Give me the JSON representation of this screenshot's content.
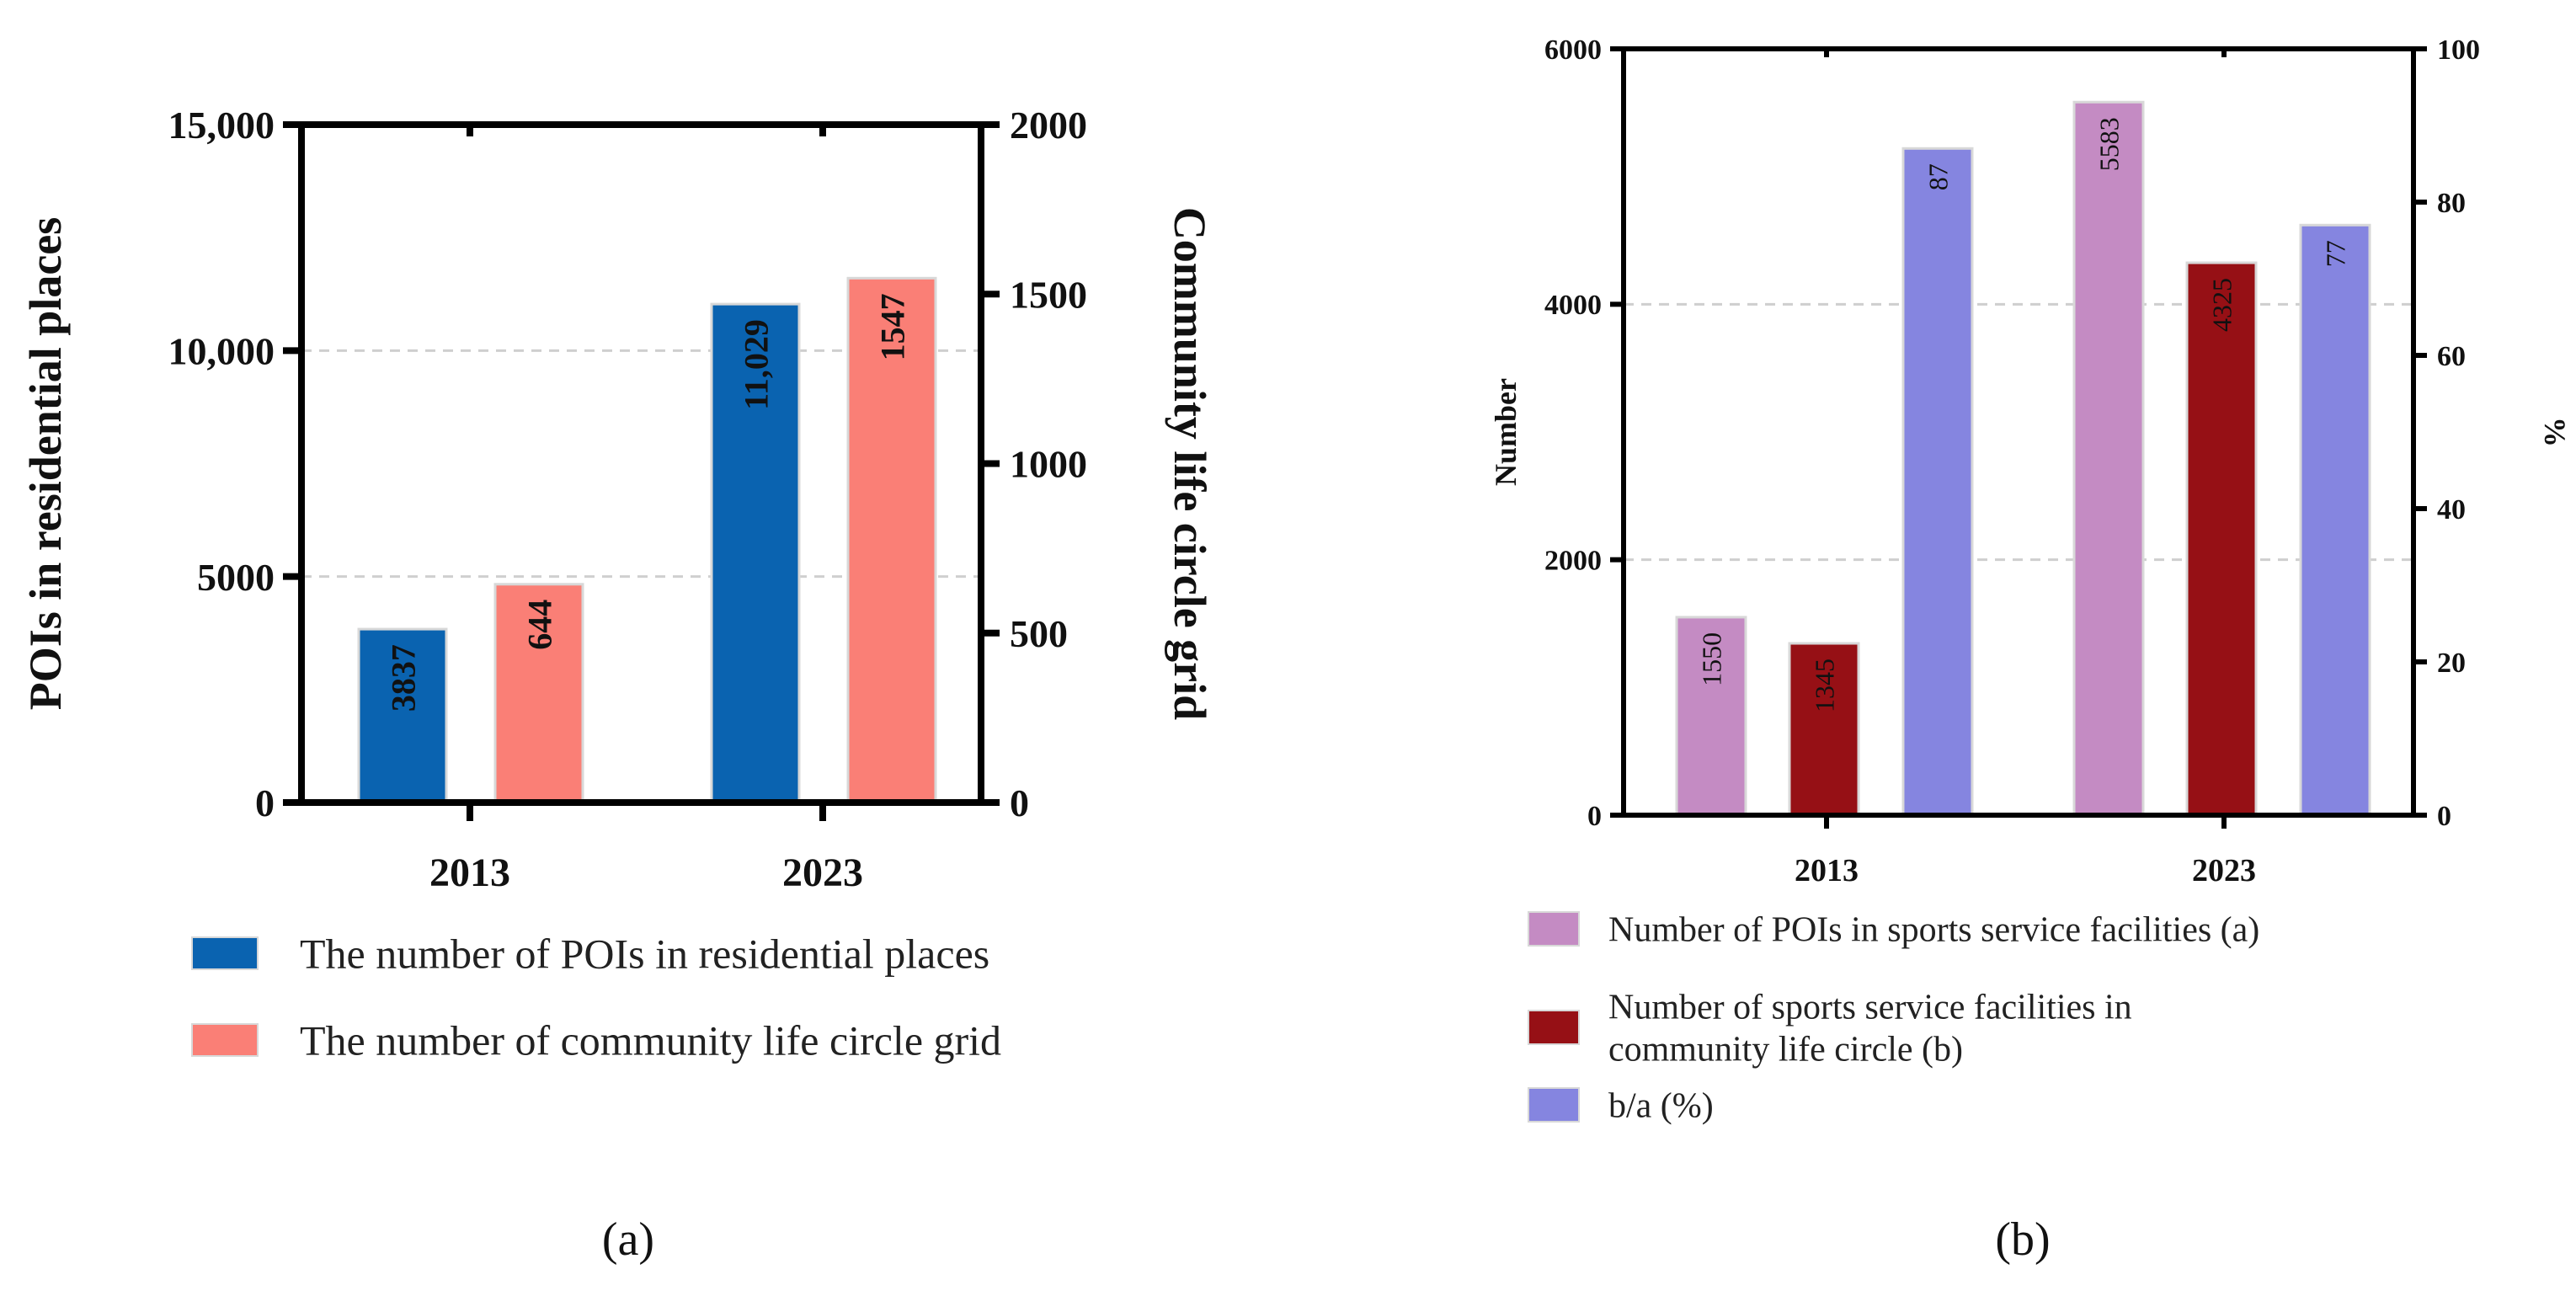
{
  "panel_labels": {
    "a": "(a)",
    "b": "(b)"
  },
  "chart_data": [
    {
      "id": "a",
      "type": "bar",
      "categories": [
        "2013",
        "2023"
      ],
      "series": [
        {
          "name": "The number of POIs in residential places",
          "axis": "left",
          "color": "#0A63B0",
          "values": [
            3837,
            11029
          ],
          "labels": [
            "3837",
            "11,029"
          ]
        },
        {
          "name": "The number of community life circle grid",
          "axis": "right",
          "color": "#FA7F76",
          "values": [
            644,
            1547
          ],
          "labels": [
            "644",
            "1547"
          ]
        }
      ],
      "ylabel": "POIs in residential places",
      "y2label": "Community life circle grid",
      "ylim": [
        0,
        15000
      ],
      "y2lim": [
        0,
        2000
      ],
      "yticks": [
        "0",
        "5000",
        "10,000",
        "15,000"
      ],
      "y2ticks": [
        "0",
        "500",
        "1000",
        "1500",
        "2000"
      ],
      "gridlines": [
        5000,
        10000
      ],
      "legend_position": "bottom"
    },
    {
      "id": "b",
      "type": "bar",
      "categories": [
        "2013",
        "2023"
      ],
      "series": [
        {
          "name": "Number of POIs in sports service facilities (a)",
          "axis": "left",
          "color": "#C48BC3",
          "values": [
            1550,
            5583
          ],
          "labels": [
            "1550",
            "5583"
          ]
        },
        {
          "name": "Number of sports service facilities in community life circle (b)",
          "legend_lines": [
            "Number of sports service facilities in",
            "community life circle (b)"
          ],
          "axis": "left",
          "color": "#961015",
          "values": [
            1345,
            4325
          ],
          "labels": [
            "1345",
            "4325"
          ]
        },
        {
          "name": "b/a (%)",
          "axis": "right",
          "color": "#8585E0",
          "values": [
            87,
            77
          ],
          "labels": [
            "87",
            "77"
          ]
        }
      ],
      "ylabel": "Number",
      "y2label": "%",
      "ylim": [
        0,
        6000
      ],
      "y2lim": [
        0,
        100
      ],
      "yticks": [
        "0",
        "2000",
        "4000",
        "6000"
      ],
      "y2ticks": [
        "0",
        "20",
        "40",
        "60",
        "80",
        "100"
      ],
      "gridlines": [
        2000,
        4000
      ],
      "legend_position": "bottom"
    }
  ]
}
